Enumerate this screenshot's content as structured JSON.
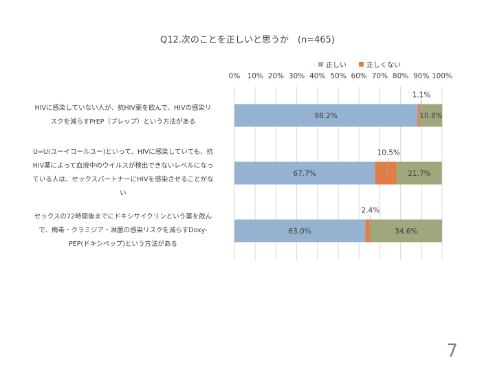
{
  "page": {
    "number": "7"
  },
  "chart_data": {
    "type": "bar",
    "orientation": "horizontal",
    "stacked": "percent",
    "title": "Q12.次のことを正しいと思うか　(n=465)",
    "xlim": [
      0,
      100
    ],
    "x_ticks": [
      "0%",
      "10%",
      "20%",
      "30%",
      "40%",
      "50%",
      "60%",
      "70%",
      "80%",
      "90%",
      "100%"
    ],
    "grid": true,
    "legend_position": "top-right",
    "categories": [
      "HIVに感染していない人が、抗HIV薬を飲んで、HIVの感染リスクを減らすPrEP（プレップ）という方法がある",
      "U=U(ユーイコールユー)といって、HIVに感染していても、抗HIV薬によって血液中のウイルスが検出できないレベルになっている人は、セックスパートナーにHIVを感染させることがない",
      "セックスの72時間後までにドキシサイクリンという薬を飲んで、梅毒・クラミジア・淋菌の感染リスクを減らすDoxy-PEP(ドキシペップ)という方法がある"
    ],
    "category_lines": [
      [
        "HIVに感染していない人が、抗HIV薬を飲んで、HIVの感染リ",
        "スクを減らすPrEP（プレップ）という方法がある"
      ],
      [
        "U=U(ユーイコールユー)といって、HIVに感染していても、抗",
        "HIV薬によって血液中のウイルスが検出できないレベルになっ",
        "ている人は、セックスパートナーにHIVを感染させることがな",
        "い"
      ],
      [
        "セックスの72時間後までにドキシサイクリンという薬を飲ん",
        "で、梅毒・クラミジア・淋菌の感染リスクを減らすDoxy-",
        "PEP(ドキシペップ)という方法がある"
      ]
    ],
    "series": [
      {
        "name": "正しい",
        "color": "#95b3d0",
        "values": [
          88.2,
          67.7,
          63.0
        ],
        "labels": [
          "88.2%",
          "67.7%",
          "63.0%"
        ]
      },
      {
        "name": "正しくない",
        "color": "#e07e4a",
        "values": [
          1.1,
          10.5,
          2.4
        ],
        "labels": [
          "1.1%",
          "10.5%",
          "2.4%"
        ]
      },
      {
        "name": "",
        "color": "#a1a77c",
        "values": [
          10.8,
          21.7,
          34.6
        ],
        "labels": [
          "10.8%",
          "21.7%",
          "34.6%"
        ]
      }
    ],
    "legend_series": [
      0,
      1
    ]
  }
}
